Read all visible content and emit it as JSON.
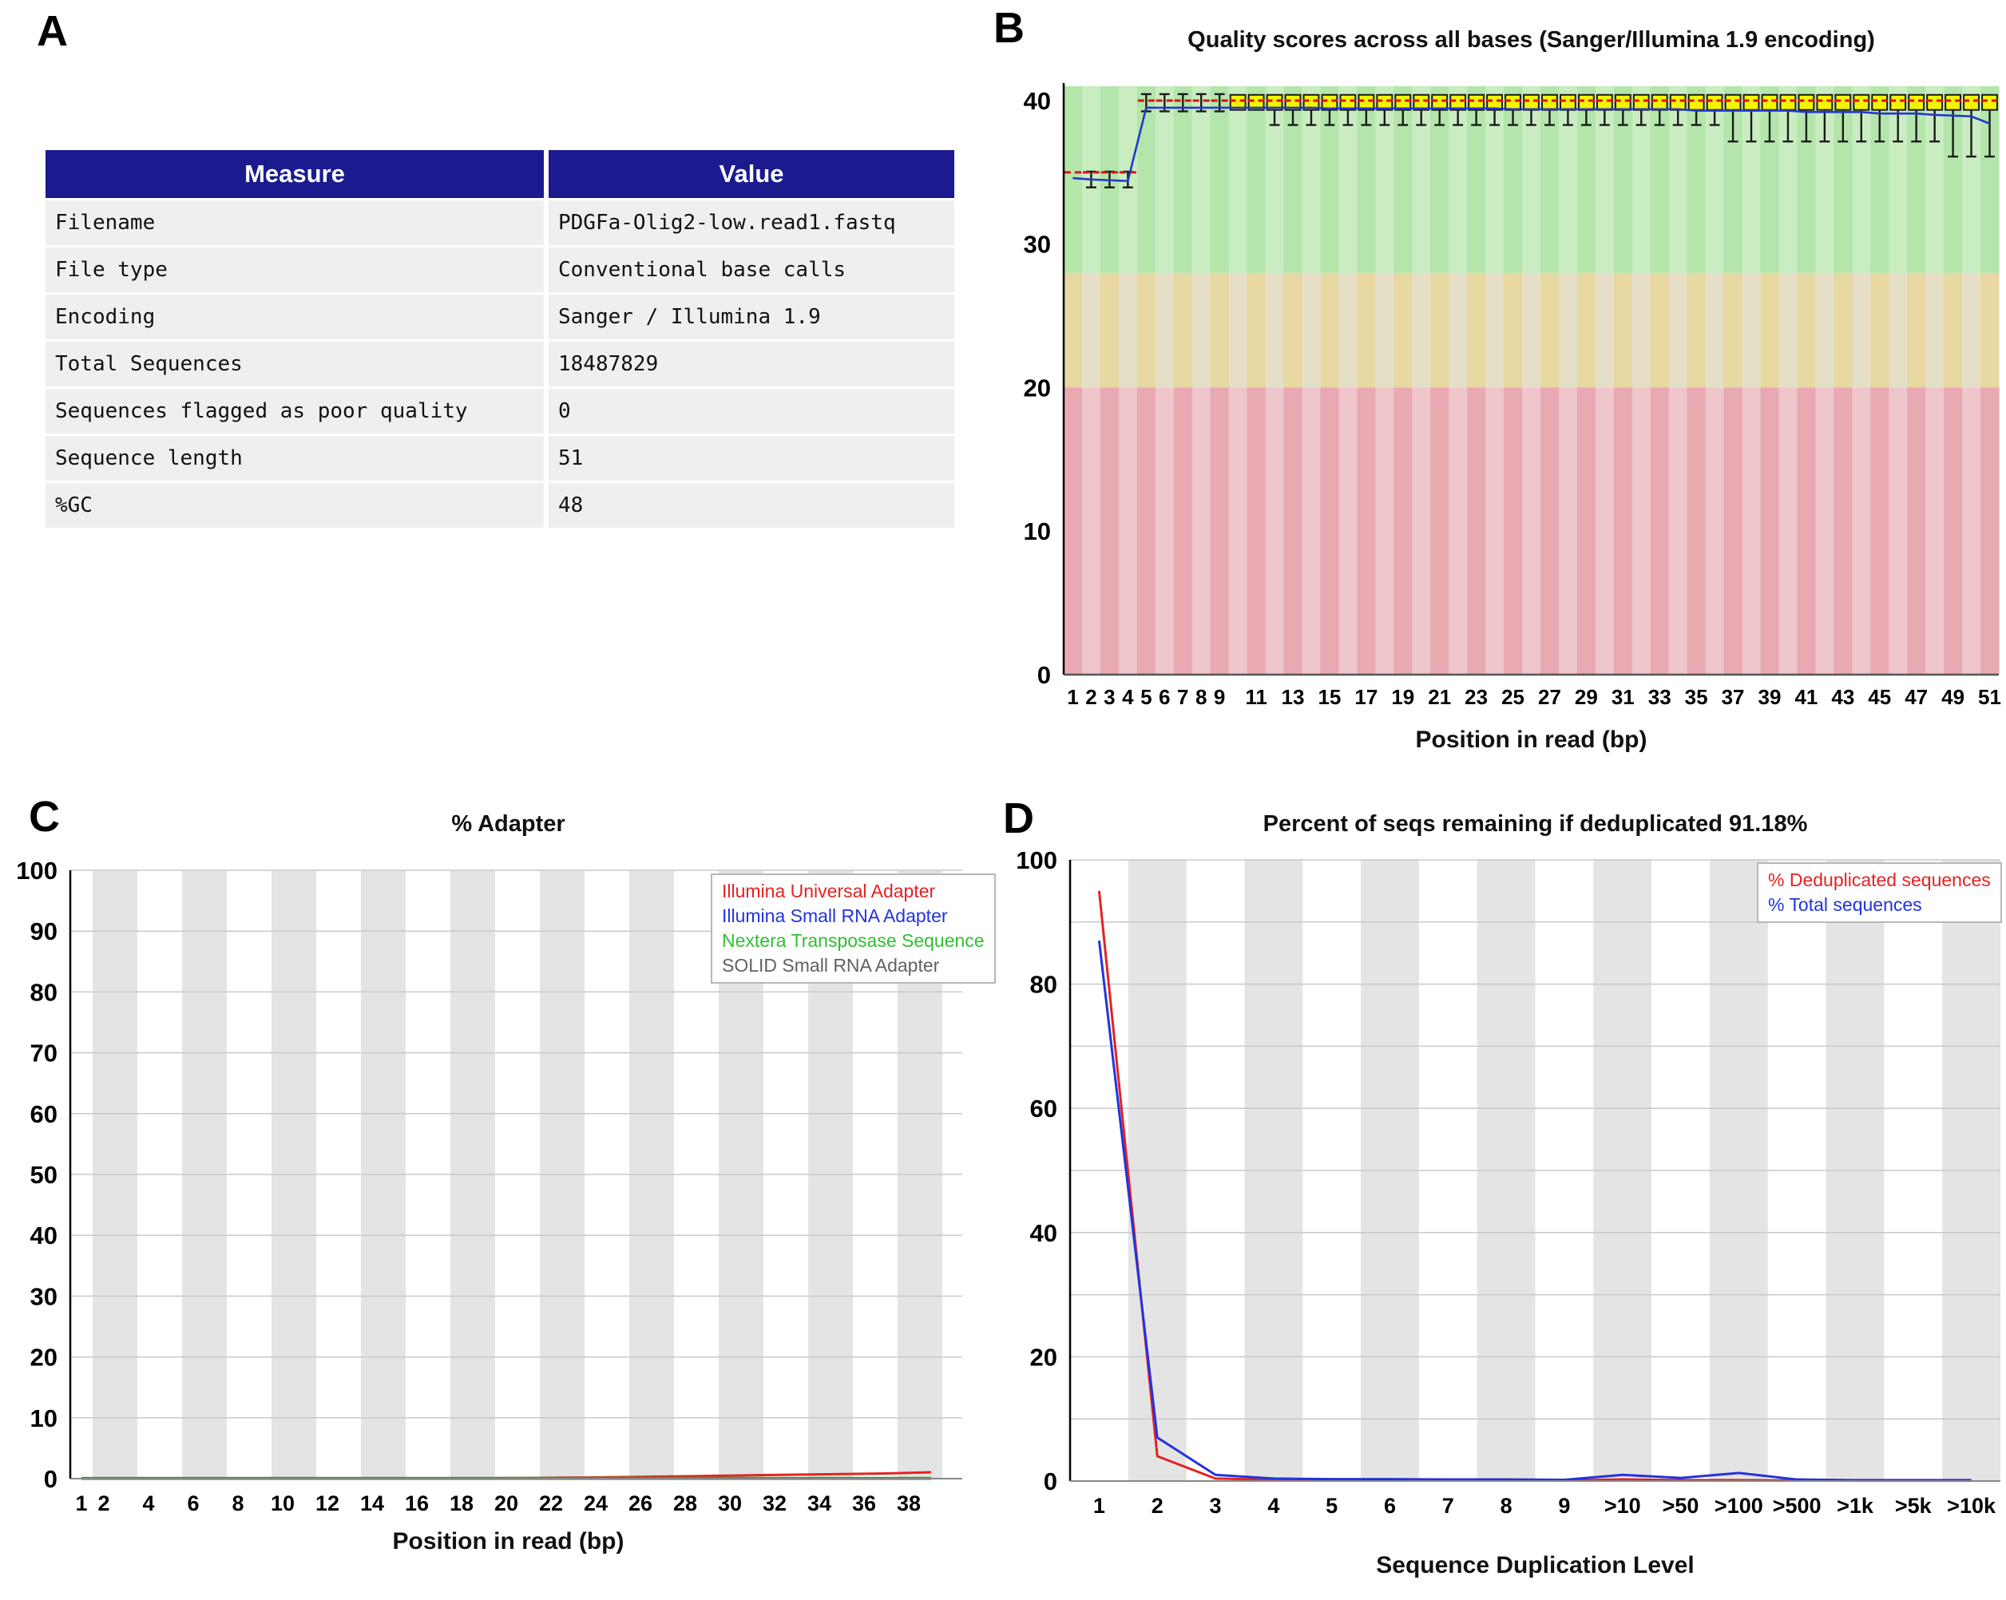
{
  "panels": {
    "a": {
      "letter": "A",
      "table": {
        "headers": [
          "Measure",
          "Value"
        ],
        "rows": [
          [
            "Filename",
            "PDGFa-Olig2-low.read1.fastq"
          ],
          [
            "File type",
            "Conventional base calls"
          ],
          [
            "Encoding",
            "Sanger / Illumina 1.9"
          ],
          [
            "Total Sequences",
            "18487829"
          ],
          [
            "Sequences flagged as poor quality",
            "0"
          ],
          [
            "Sequence length",
            "51"
          ],
          [
            "%GC",
            "48"
          ]
        ],
        "header_bg": "#1b1b8f",
        "row_bg": "#efefef"
      }
    },
    "b": {
      "letter": "B",
      "title": "Quality scores across all bases (Sanger/Illumina 1.9 encoding)",
      "xlabel": "Position in read (bp)"
    },
    "c": {
      "letter": "C",
      "title": "% Adapter",
      "xlabel": "Position in read (bp)"
    },
    "d": {
      "letter": "D",
      "title": "Percent of seqs remaining if deduplicated 91.18%",
      "xlabel": "Sequence Duplication Level"
    }
  },
  "chart_data": [
    {
      "id": "quality",
      "type": "boxplot",
      "title": "Quality scores across all bases (Sanger/Illumina 1.9 encoding)",
      "xlabel": "Position in read (bp)",
      "ylabel": "",
      "ylim": [
        0,
        41
      ],
      "y_ticks": [
        0,
        10,
        20,
        30,
        40
      ],
      "grid": false,
      "zones": [
        {
          "from": 0,
          "to": 20,
          "colors": [
            "#e8a9b2",
            "#eec6cb"
          ]
        },
        {
          "from": 20,
          "to": 28,
          "colors": [
            "#e8d8a2",
            "#e5dfc7"
          ]
        },
        {
          "from": 28,
          "to": 41,
          "colors": [
            "#b4e5ab",
            "#c9edc1"
          ]
        }
      ],
      "positions": [
        1,
        2,
        3,
        4,
        5,
        6,
        7,
        8,
        9,
        10,
        11,
        12,
        13,
        14,
        15,
        16,
        17,
        18,
        19,
        20,
        21,
        22,
        23,
        24,
        25,
        26,
        27,
        28,
        29,
        30,
        31,
        32,
        33,
        34,
        35,
        36,
        37,
        38,
        39,
        40,
        41,
        42,
        43,
        44,
        45,
        46,
        47,
        48,
        49,
        50,
        51
      ],
      "x_tick_positions": [
        1,
        2,
        3,
        4,
        5,
        6,
        7,
        8,
        9,
        11,
        13,
        15,
        17,
        19,
        21,
        23,
        25,
        27,
        29,
        31,
        33,
        35,
        37,
        39,
        41,
        43,
        45,
        47,
        49,
        51
      ],
      "x_tick_labels": [
        "1",
        "2",
        "3",
        "4",
        "5",
        "6",
        "7",
        "8",
        "9",
        "11",
        "13",
        "15",
        "17",
        "19",
        "21",
        "23",
        "25",
        "27",
        "29",
        "31",
        "33",
        "35",
        "37",
        "39",
        "41",
        "43",
        "45",
        "47",
        "49",
        "51"
      ],
      "median": [
        35,
        35,
        35,
        35,
        40,
        40,
        40,
        40,
        40,
        40,
        40,
        40,
        40,
        40,
        40,
        40,
        40,
        40,
        40,
        40,
        40,
        40,
        40,
        40,
        40,
        40,
        40,
        40,
        40,
        40,
        40,
        40,
        40,
        40,
        40,
        40,
        40,
        40,
        40,
        40,
        40,
        40,
        40,
        40,
        40,
        40,
        40,
        40,
        40,
        40,
        40
      ],
      "mean": [
        34.6,
        34.5,
        34.45,
        34.4,
        39.5,
        39.5,
        39.5,
        39.5,
        39.5,
        39.5,
        39.5,
        39.5,
        39.5,
        39.5,
        39.45,
        39.45,
        39.45,
        39.45,
        39.45,
        39.45,
        39.45,
        39.45,
        39.45,
        39.45,
        39.4,
        39.4,
        39.4,
        39.4,
        39.4,
        39.4,
        39.4,
        39.4,
        39.4,
        39.4,
        39.3,
        39.3,
        39.3,
        39.3,
        39.3,
        39.3,
        39.2,
        39.2,
        39.2,
        39.2,
        39.1,
        39.1,
        39.1,
        39,
        38.95,
        38.9,
        38.4
      ],
      "q1": [
        null,
        null,
        null,
        null,
        null,
        null,
        null,
        null,
        null,
        39.35,
        39.35,
        39.35,
        39.35,
        39.35,
        39.35,
        39.35,
        39.35,
        39.35,
        39.35,
        39.35,
        39.35,
        39.35,
        39.35,
        39.35,
        39.35,
        39.35,
        39.35,
        39.35,
        39.35,
        39.35,
        39.35,
        39.35,
        39.35,
        39.35,
        39.35,
        39.35,
        39.35,
        39.35,
        39.35,
        39.35,
        39.35,
        39.35,
        39.35,
        39.35,
        39.35,
        39.35,
        39.35,
        39.35,
        39.35,
        39.35,
        39.35
      ],
      "q3": [
        null,
        null,
        null,
        null,
        null,
        null,
        null,
        null,
        null,
        40.4,
        40.4,
        40.4,
        40.4,
        40.4,
        40.4,
        40.4,
        40.4,
        40.4,
        40.4,
        40.4,
        40.4,
        40.4,
        40.4,
        40.4,
        40.4,
        40.4,
        40.4,
        40.4,
        40.4,
        40.4,
        40.4,
        40.4,
        40.4,
        40.4,
        40.4,
        40.4,
        40.4,
        40.4,
        40.4,
        40.4,
        40.4,
        40.4,
        40.4,
        40.4,
        40.4,
        40.4,
        40.4,
        40.4,
        40.4,
        40.4,
        40.4
      ],
      "whisker_low": [
        null,
        33.95,
        33.95,
        33.95,
        39.25,
        39.25,
        39.25,
        39.25,
        39.25,
        null,
        null,
        38.3,
        38.3,
        38.3,
        38.3,
        38.3,
        38.3,
        38.3,
        38.3,
        38.3,
        38.3,
        38.3,
        38.3,
        38.3,
        38.3,
        38.3,
        38.3,
        38.3,
        38.3,
        38.3,
        38.3,
        38.3,
        38.3,
        38.3,
        38.3,
        38.3,
        37.15,
        37.15,
        37.15,
        37.15,
        37.15,
        37.15,
        37.15,
        37.15,
        37.15,
        37.15,
        37.15,
        37.15,
        36.1,
        36.1,
        36.1
      ],
      "whisker_high": [
        null,
        35.05,
        35.05,
        35.05,
        40.45,
        40.45,
        40.45,
        40.45,
        40.45,
        null,
        null,
        null,
        null,
        null,
        null,
        null,
        null,
        null,
        null,
        null,
        null,
        null,
        null,
        null,
        null,
        null,
        null,
        null,
        null,
        null,
        null,
        null,
        null,
        null,
        null,
        null,
        null,
        null,
        null,
        null,
        null,
        null,
        null,
        null,
        null,
        null,
        null,
        null,
        null,
        null,
        null
      ],
      "colors": {
        "box": "#f4f400",
        "box_border": "#1a1a1a",
        "median": "#dd1111",
        "mean": "#2438cc"
      }
    },
    {
      "id": "adapter",
      "type": "line",
      "title": "% Adapter",
      "xlabel": "Position in read (bp)",
      "ylim": [
        0,
        100
      ],
      "y_ticks": [
        0,
        10,
        20,
        30,
        40,
        50,
        60,
        70,
        80,
        90,
        100
      ],
      "grid_values": [
        10,
        20,
        30,
        40,
        50,
        60,
        70,
        80,
        90,
        100
      ],
      "n": 39,
      "stripe_mode": "pairs",
      "x_tick_positions": [
        1,
        2,
        4,
        6,
        8,
        10,
        12,
        14,
        16,
        18,
        20,
        22,
        24,
        26,
        28,
        30,
        32,
        34,
        36,
        38
      ],
      "legend_position": "top-right",
      "series": [
        {
          "name": "Illumina Universal Adapter",
          "color": "#e42222",
          "values": [
            0,
            0,
            0,
            0,
            0,
            0,
            0,
            0,
            0,
            0,
            0,
            0,
            0,
            0,
            0,
            0,
            0,
            0,
            0.05,
            0.1,
            0.12,
            0.15,
            0.18,
            0.2,
            0.25,
            0.3,
            0.35,
            0.4,
            0.45,
            0.5,
            0.55,
            0.6,
            0.65,
            0.7,
            0.75,
            0.8,
            0.85,
            0.95,
            1.05
          ]
        },
        {
          "name": "Illumina Small RNA Adapter",
          "color": "#2233dd",
          "values": [
            0,
            0,
            0,
            0,
            0,
            0,
            0,
            0,
            0,
            0,
            0,
            0,
            0,
            0,
            0,
            0,
            0,
            0,
            0,
            0,
            0,
            0,
            0,
            0,
            0,
            0,
            0,
            0,
            0,
            0,
            0,
            0,
            0,
            0,
            0,
            0,
            0,
            0,
            0
          ]
        },
        {
          "name": "Nextera Transposase Sequence",
          "color": "#2fbf2f",
          "values": [
            0.1,
            0.1,
            0.1,
            0.1,
            0.1,
            0.1,
            0.1,
            0.1,
            0.1,
            0.1,
            0.1,
            0.1,
            0.1,
            0.1,
            0.1,
            0.1,
            0.1,
            0.1,
            0.1,
            0.1,
            0.1,
            0.1,
            0.1,
            0.1,
            0.1,
            0.1,
            0.1,
            0.1,
            0.1,
            0.1,
            0.1,
            0.1,
            0.1,
            0.1,
            0.1,
            0.1,
            0.1,
            0.1,
            0.1
          ]
        },
        {
          "name": "SOLID Small RNA Adapter",
          "color": "#5f6163",
          "line_color": "#4e584e",
          "values": [
            0,
            0,
            0,
            0,
            0,
            0,
            0,
            0,
            0,
            0,
            0,
            0,
            0,
            0,
            0,
            0,
            0,
            0,
            0,
            0,
            0,
            0,
            0,
            0,
            0,
            0,
            0,
            0,
            0,
            0,
            0,
            0,
            0,
            0,
            0,
            0,
            0,
            0,
            0
          ]
        }
      ]
    },
    {
      "id": "duplication",
      "type": "line",
      "title": "Percent of seqs remaining if deduplicated 91.18%",
      "xlabel": "Sequence Duplication Level",
      "ylim": [
        0,
        100
      ],
      "y_ticks": [
        0,
        20,
        40,
        60,
        80,
        100
      ],
      "grid_values": [
        10,
        20,
        30,
        40,
        50,
        60,
        70,
        80,
        90,
        100
      ],
      "n": 16,
      "stripe_mode": "single",
      "categories": [
        "1",
        "2",
        "3",
        "4",
        "5",
        "6",
        "7",
        "8",
        "9",
        ">10",
        ">50",
        ">100",
        ">500",
        ">1k",
        ">5k",
        ">10k"
      ],
      "legend_position": "top-right",
      "series": [
        {
          "name": "% Deduplicated sequences",
          "color": "#e42222",
          "values": [
            95,
            4,
            0.4,
            0.2,
            0.15,
            0.15,
            0.1,
            0.1,
            0.1,
            0.25,
            0.15,
            0.15,
            0.1,
            0.05,
            0.05,
            0.05
          ]
        },
        {
          "name": "% Total sequences",
          "color": "#2233dd",
          "values": [
            87,
            7,
            1,
            0.4,
            0.3,
            0.3,
            0.25,
            0.25,
            0.2,
            1,
            0.5,
            1.3,
            0.25,
            0.15,
            0.15,
            0.15
          ]
        }
      ]
    }
  ]
}
